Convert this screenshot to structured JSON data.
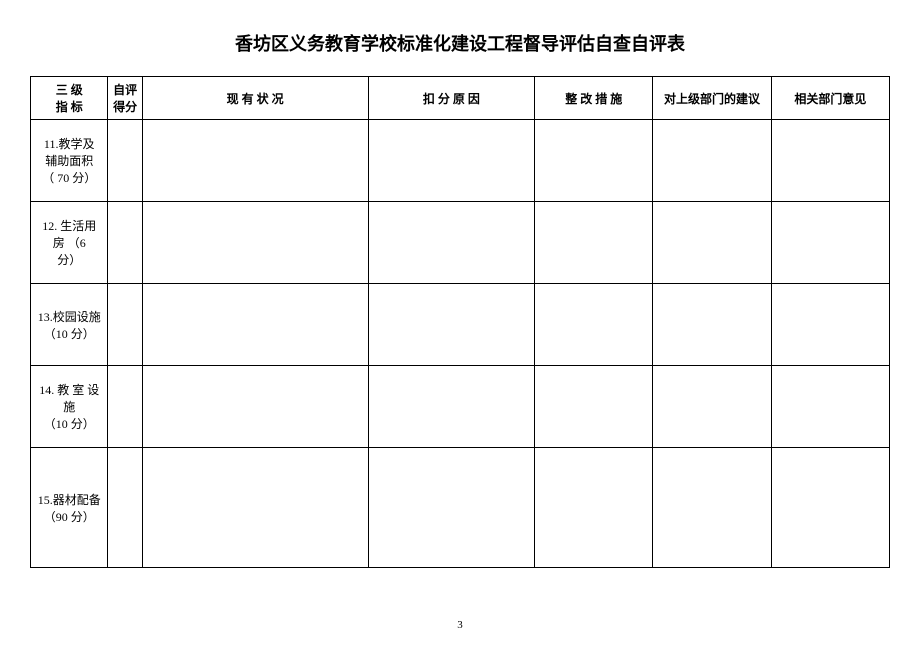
{
  "title": "香坊区义务教育学校标准化建设工程督导评估自查自评表",
  "page_number": "3",
  "table": {
    "headers": {
      "indicator": "三 级\n指 标",
      "score": "自评\n得分",
      "status": "现 有 状 况",
      "reason": "扣 分 原 因",
      "measure": "整 改 措 施",
      "suggest": "对上级部门的建议",
      "opinion": "相关部门意见"
    },
    "rows": [
      {
        "indicator": "11.教学及\n辅助面积\n（ 70 分）",
        "score": "",
        "status": "",
        "reason": "",
        "measure": "",
        "suggest": "",
        "opinion": ""
      },
      {
        "indicator": "12. 生活用\n房  （6\n分）",
        "score": "",
        "status": "",
        "reason": "",
        "measure": "",
        "suggest": "",
        "opinion": ""
      },
      {
        "indicator": "13.校园设施\n（10 分）",
        "score": "",
        "status": "",
        "reason": "",
        "measure": "",
        "suggest": "",
        "opinion": ""
      },
      {
        "indicator": "14. 教 室 设\n施\n（10 分）",
        "score": "",
        "status": "",
        "reason": "",
        "measure": "",
        "suggest": "",
        "opinion": ""
      },
      {
        "indicator": "15.器材配备\n（90 分）",
        "score": "",
        "status": "",
        "reason": "",
        "measure": "",
        "suggest": "",
        "opinion": ""
      }
    ]
  },
  "colors": {
    "background": "#ffffff",
    "border": "#000000",
    "text": "#000000"
  }
}
